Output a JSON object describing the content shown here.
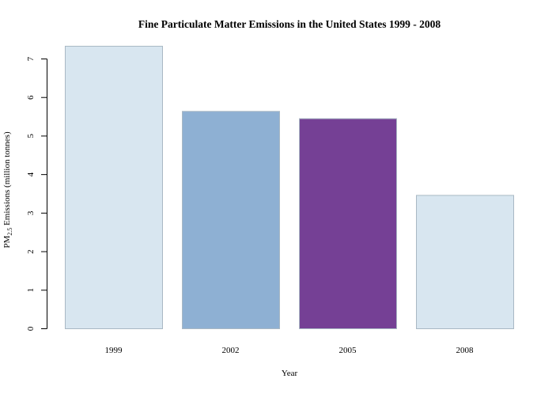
{
  "chart_data": {
    "type": "bar",
    "title": "Fine Particulate Matter Emissions in the United States 1999 - 2008",
    "xlabel": "Year",
    "ylabel": {
      "prefix": "PM",
      "subscript": "2.5",
      "suffix": " Emissions (million tonnes)"
    },
    "categories": [
      "1999",
      "2002",
      "2005",
      "2008"
    ],
    "values": [
      7.33,
      5.64,
      5.45,
      3.46
    ],
    "colors": [
      "#d8e6f0",
      "#8eb0d3",
      "#754095",
      "#d8e6f0"
    ],
    "bar_border_color": "#a9b8c4",
    "ylim": [
      0,
      7
    ],
    "yticks": [
      0,
      1,
      2,
      3,
      4,
      5,
      6,
      7
    ],
    "grid": false,
    "legend": "none"
  }
}
